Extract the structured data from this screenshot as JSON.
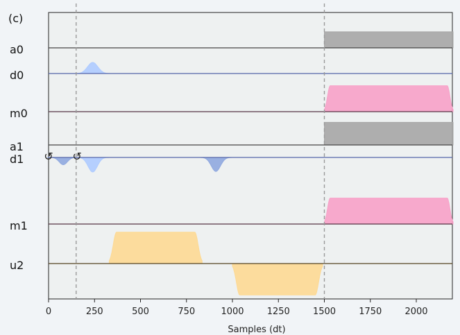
{
  "chart_data": {
    "type": "pulse-schedule",
    "panel_label": "(c)",
    "xlabel": "Samples (dt)",
    "xlim": [
      0,
      2200
    ],
    "xticks": [
      0,
      250,
      500,
      750,
      1000,
      1250,
      1500,
      1750,
      2000
    ],
    "xtick_labels": [
      "0",
      "250",
      "500",
      "750",
      "1000",
      "1250",
      "1500",
      "1750",
      "2000"
    ],
    "vlines": [
      150,
      1500
    ],
    "phase_markers": [
      0,
      155
    ],
    "phase_marker_symbol": "↺",
    "channels": [
      {
        "name": "a0",
        "color": "#a6a6a6",
        "line_color": "#444444",
        "pulses": [
          {
            "shape": "square",
            "start": 1500,
            "end": 2200,
            "amp": 0.68
          }
        ]
      },
      {
        "name": "d0",
        "color": "#aecbff",
        "line_color": "#5566aa",
        "pulses": [
          {
            "shape": "gauss",
            "center": 240,
            "sigma": 28,
            "amp": 0.4
          }
        ]
      },
      {
        "name": "m0",
        "color": "#f7a1c8",
        "line_color": "#553344",
        "pulses": [
          {
            "shape": "gaussian-square",
            "start": 1500,
            "end": 2200,
            "rise": 32,
            "amp": 0.72
          }
        ]
      },
      {
        "name": "a1",
        "color": "#a6a6a6",
        "line_color": "#444444",
        "pulses": [
          {
            "shape": "square",
            "start": 1500,
            "end": 2200,
            "amp": 0.68
          }
        ]
      },
      {
        "name": "d1",
        "color": "#8fa8df",
        "line_color": "#5566aa",
        "pulses": [
          {
            "shape": "gauss",
            "center": 80,
            "sigma": 22,
            "amp": -0.25
          },
          {
            "shape": "gauss",
            "center": 240,
            "sigma": 25,
            "amp": -0.5,
            "color": "#aecbff"
          },
          {
            "shape": "gauss",
            "center": 910,
            "sigma": 25,
            "amp": -0.48
          }
        ]
      },
      {
        "name": "m1",
        "color": "#f7a1c8",
        "line_color": "#553344",
        "pulses": [
          {
            "shape": "gaussian-square",
            "start": 1500,
            "end": 2200,
            "rise": 32,
            "amp": 0.72
          }
        ]
      },
      {
        "name": "u2",
        "color": "#fdd993",
        "line_color": "#554422",
        "pulses": [
          {
            "shape": "gaussian-square",
            "start": 330,
            "end": 835,
            "rise": 40,
            "amp": 0.78
          },
          {
            "shape": "gaussian-square",
            "start": 1000,
            "end": 1490,
            "rise": 40,
            "amp": -0.78
          }
        ]
      }
    ]
  }
}
